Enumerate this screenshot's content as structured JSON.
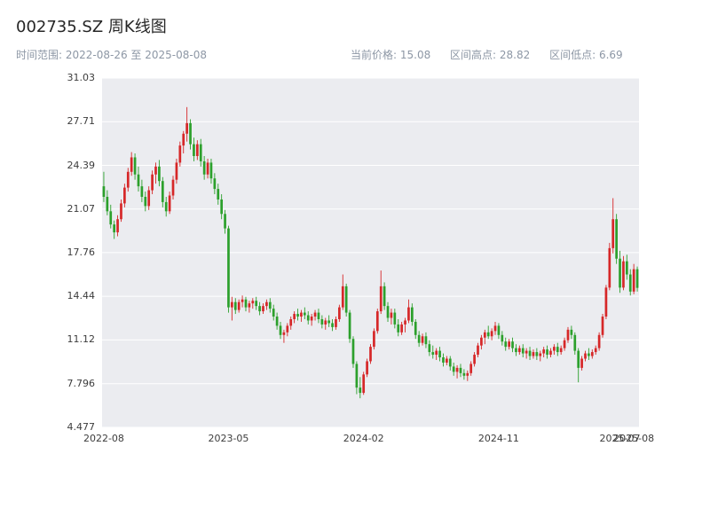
{
  "header": {
    "title": "002735.SZ 周K线图",
    "time_range": "时间范围: 2022-08-26 至 2025-08-08",
    "stats": [
      "当前价格: 15.08",
      "区间高点: 28.82",
      "区间低点: 6.69"
    ]
  },
  "chart_data": {
    "type": "candlestick",
    "symbol": "002735.SZ",
    "interval": "weekly",
    "title": "002735.SZ 周K线图",
    "start_date": "2022-08-26",
    "end_date": "2025-08-08",
    "current_price": 15.08,
    "range_high": 28.82,
    "range_low": 6.69,
    "ylim": [
      4.477,
      31.03
    ],
    "y_ticks": [
      "4.477",
      "7.796",
      "11.12",
      "14.44",
      "17.76",
      "21.07",
      "24.39",
      "27.71",
      "31.03"
    ],
    "x_ticks": [
      {
        "label": "2022-08",
        "index": 0
      },
      {
        "label": "2023-05",
        "index": 36
      },
      {
        "label": "2024-02",
        "index": 75
      },
      {
        "label": "2024-11",
        "index": 114
      },
      {
        "label": "2025-07",
        "index": 149
      },
      {
        "label": "2025-08",
        "index": 153
      }
    ],
    "up_color": "#d62728",
    "down_color": "#2ca02c",
    "plot_bg": "#ebecf0",
    "grid_color": "#ffffff",
    "candles": [
      [
        22.8,
        23.9,
        21.6,
        22.0
      ],
      [
        22.0,
        22.5,
        20.6,
        20.9
      ],
      [
        20.9,
        21.4,
        19.6,
        19.9
      ],
      [
        19.9,
        20.2,
        18.8,
        19.3
      ],
      [
        19.3,
        20.6,
        19.0,
        20.3
      ],
      [
        20.3,
        21.8,
        20.1,
        21.5
      ],
      [
        21.5,
        23.0,
        21.2,
        22.7
      ],
      [
        22.7,
        24.2,
        22.4,
        23.9
      ],
      [
        23.9,
        25.4,
        23.6,
        25.0
      ],
      [
        25.0,
        25.3,
        23.3,
        23.7
      ],
      [
        23.7,
        24.3,
        22.4,
        22.8
      ],
      [
        22.8,
        23.3,
        21.6,
        22.0
      ],
      [
        22.0,
        22.4,
        20.9,
        21.3
      ],
      [
        21.3,
        22.8,
        21.0,
        22.5
      ],
      [
        22.5,
        24.0,
        22.2,
        23.7
      ],
      [
        23.7,
        24.6,
        23.0,
        24.3
      ],
      [
        24.3,
        24.8,
        22.8,
        23.2
      ],
      [
        23.2,
        23.5,
        21.2,
        21.6
      ],
      [
        21.6,
        22.0,
        20.5,
        20.9
      ],
      [
        20.9,
        22.4,
        20.7,
        22.1
      ],
      [
        22.1,
        23.6,
        21.8,
        23.3
      ],
      [
        23.3,
        24.9,
        23.0,
        24.6
      ],
      [
        24.6,
        26.2,
        24.3,
        25.9
      ],
      [
        25.9,
        27.0,
        25.3,
        26.8
      ],
      [
        26.8,
        28.82,
        26.2,
        27.6
      ],
      [
        27.6,
        27.9,
        25.6,
        26.0
      ],
      [
        26.0,
        26.5,
        24.7,
        25.1
      ],
      [
        25.1,
        26.3,
        24.8,
        26.0
      ],
      [
        26.0,
        26.4,
        24.3,
        24.7
      ],
      [
        24.7,
        25.1,
        23.3,
        23.7
      ],
      [
        23.7,
        24.9,
        23.4,
        24.6
      ],
      [
        24.6,
        24.9,
        23.0,
        23.4
      ],
      [
        23.4,
        23.8,
        22.2,
        22.6
      ],
      [
        22.6,
        23.0,
        21.4,
        21.8
      ],
      [
        21.8,
        22.2,
        20.3,
        20.7
      ],
      [
        20.7,
        21.0,
        19.2,
        19.6
      ],
      [
        19.6,
        19.8,
        13.2,
        13.6
      ],
      [
        13.6,
        14.4,
        12.6,
        14.0
      ],
      [
        14.0,
        14.3,
        13.1,
        13.4
      ],
      [
        13.4,
        14.2,
        13.2,
        14.0
      ],
      [
        14.0,
        14.5,
        13.6,
        14.2
      ],
      [
        14.2,
        14.4,
        13.3,
        13.6
      ],
      [
        13.6,
        14.1,
        13.2,
        13.9
      ],
      [
        13.9,
        14.3,
        13.5,
        14.1
      ],
      [
        14.1,
        14.4,
        13.4,
        13.7
      ],
      [
        13.7,
        14.0,
        13.0,
        13.3
      ],
      [
        13.3,
        13.9,
        13.1,
        13.7
      ],
      [
        13.7,
        14.2,
        13.4,
        14.0
      ],
      [
        14.0,
        14.3,
        13.2,
        13.5
      ],
      [
        13.5,
        13.8,
        12.6,
        12.9
      ],
      [
        12.9,
        13.2,
        11.9,
        12.2
      ],
      [
        12.2,
        12.5,
        11.2,
        11.5
      ],
      [
        11.5,
        11.9,
        10.9,
        11.7
      ],
      [
        11.7,
        12.4,
        11.4,
        12.2
      ],
      [
        12.2,
        12.9,
        11.9,
        12.7
      ],
      [
        12.7,
        13.3,
        12.4,
        13.1
      ],
      [
        13.1,
        13.5,
        12.6,
        12.9
      ],
      [
        12.9,
        13.4,
        12.5,
        13.2
      ],
      [
        13.2,
        13.6,
        12.7,
        13.0
      ],
      [
        13.0,
        13.3,
        12.3,
        12.6
      ],
      [
        12.6,
        13.1,
        12.2,
        12.9
      ],
      [
        12.9,
        13.4,
        12.6,
        13.2
      ],
      [
        13.2,
        13.5,
        12.4,
        12.7
      ],
      [
        12.7,
        13.0,
        12.0,
        12.3
      ],
      [
        12.3,
        12.8,
        11.9,
        12.6
      ],
      [
        12.6,
        13.0,
        12.1,
        12.4
      ],
      [
        12.4,
        12.7,
        11.8,
        12.1
      ],
      [
        12.1,
        12.9,
        11.9,
        12.7
      ],
      [
        12.7,
        13.8,
        12.5,
        13.6
      ],
      [
        13.6,
        16.1,
        13.4,
        15.2
      ],
      [
        15.2,
        15.4,
        12.9,
        13.2
      ],
      [
        13.2,
        13.4,
        10.9,
        11.2
      ],
      [
        11.2,
        11.4,
        9.0,
        9.3
      ],
      [
        9.3,
        9.5,
        7.0,
        7.5
      ],
      [
        7.5,
        8.3,
        6.69,
        7.1
      ],
      [
        7.1,
        8.7,
        6.95,
        8.5
      ],
      [
        8.5,
        9.7,
        8.3,
        9.5
      ],
      [
        9.5,
        10.8,
        9.3,
        10.6
      ],
      [
        10.6,
        12.0,
        10.4,
        11.8
      ],
      [
        11.8,
        13.5,
        11.6,
        13.3
      ],
      [
        13.3,
        16.4,
        13.1,
        15.2
      ],
      [
        15.2,
        15.5,
        13.4,
        13.7
      ],
      [
        13.7,
        14.0,
        12.5,
        12.8
      ],
      [
        12.8,
        13.5,
        12.3,
        13.2
      ],
      [
        13.2,
        13.5,
        12.0,
        12.3
      ],
      [
        12.3,
        12.7,
        11.4,
        11.7
      ],
      [
        11.7,
        12.5,
        11.5,
        12.3
      ],
      [
        12.3,
        12.8,
        11.7,
        12.6
      ],
      [
        12.6,
        14.2,
        12.4,
        13.6
      ],
      [
        13.6,
        13.9,
        12.2,
        12.5
      ],
      [
        12.5,
        12.7,
        11.2,
        11.5
      ],
      [
        11.5,
        11.8,
        10.6,
        10.9
      ],
      [
        10.9,
        11.6,
        10.7,
        11.4
      ],
      [
        11.4,
        11.7,
        10.5,
        10.8
      ],
      [
        10.8,
        11.1,
        9.9,
        10.2
      ],
      [
        10.2,
        10.7,
        9.7,
        10.0
      ],
      [
        10.0,
        10.5,
        9.6,
        10.3
      ],
      [
        10.3,
        10.6,
        9.5,
        9.8
      ],
      [
        9.8,
        10.1,
        9.1,
        9.4
      ],
      [
        9.4,
        9.9,
        9.2,
        9.7
      ],
      [
        9.7,
        9.9,
        8.8,
        9.1
      ],
      [
        9.1,
        9.4,
        8.4,
        8.7
      ],
      [
        8.7,
        9.2,
        8.2,
        9.0
      ],
      [
        9.0,
        9.3,
        8.3,
        8.6
      ],
      [
        8.6,
        8.9,
        8.1,
        8.4
      ],
      [
        8.4,
        8.8,
        8.0,
        8.6
      ],
      [
        8.6,
        9.5,
        8.4,
        9.3
      ],
      [
        9.3,
        10.2,
        9.1,
        10.0
      ],
      [
        10.0,
        10.9,
        9.8,
        10.7
      ],
      [
        10.7,
        11.5,
        10.4,
        11.3
      ],
      [
        11.3,
        11.9,
        10.8,
        11.7
      ],
      [
        11.7,
        12.2,
        11.2,
        11.4
      ],
      [
        11.4,
        12.0,
        11.1,
        11.8
      ],
      [
        11.8,
        12.5,
        11.5,
        12.2
      ],
      [
        12.2,
        12.4,
        11.2,
        11.5
      ],
      [
        11.5,
        11.8,
        10.7,
        11.0
      ],
      [
        11.0,
        11.3,
        10.3,
        10.6
      ],
      [
        10.6,
        11.2,
        10.4,
        11.0
      ],
      [
        11.0,
        11.3,
        10.2,
        10.5
      ],
      [
        10.5,
        10.8,
        9.9,
        10.2
      ],
      [
        10.2,
        10.7,
        10.0,
        10.5
      ],
      [
        10.5,
        10.8,
        9.8,
        10.1
      ],
      [
        10.1,
        10.5,
        9.7,
        10.3
      ],
      [
        10.3,
        10.6,
        9.6,
        9.9
      ],
      [
        9.9,
        10.4,
        9.7,
        10.2
      ],
      [
        10.2,
        10.5,
        9.6,
        9.9
      ],
      [
        9.9,
        10.3,
        9.5,
        10.1
      ],
      [
        10.1,
        10.6,
        9.8,
        10.4
      ],
      [
        10.4,
        10.7,
        9.7,
        10.0
      ],
      [
        10.0,
        10.5,
        9.8,
        10.3
      ],
      [
        10.3,
        10.8,
        10.0,
        10.6
      ],
      [
        10.6,
        10.9,
        9.9,
        10.2
      ],
      [
        10.2,
        10.7,
        10.0,
        10.5
      ],
      [
        10.5,
        11.3,
        10.3,
        11.1
      ],
      [
        11.1,
        12.1,
        10.9,
        11.9
      ],
      [
        11.9,
        12.2,
        11.2,
        11.5
      ],
      [
        11.5,
        11.7,
        10.0,
        10.3
      ],
      [
        10.3,
        10.5,
        7.9,
        9.0
      ],
      [
        9.0,
        9.9,
        8.8,
        9.7
      ],
      [
        9.7,
        10.3,
        9.5,
        10.1
      ],
      [
        10.1,
        10.5,
        9.6,
        9.9
      ],
      [
        9.9,
        10.4,
        9.7,
        10.2
      ],
      [
        10.2,
        10.7,
        10.0,
        10.5
      ],
      [
        10.5,
        11.7,
        10.3,
        11.5
      ],
      [
        11.5,
        13.1,
        11.3,
        12.9
      ],
      [
        12.9,
        15.3,
        12.7,
        15.1
      ],
      [
        15.1,
        18.5,
        14.9,
        18.1
      ],
      [
        18.1,
        21.9,
        17.7,
        20.3
      ],
      [
        20.3,
        20.7,
        16.9,
        17.3
      ],
      [
        17.3,
        17.9,
        14.7,
        15.1
      ],
      [
        15.1,
        17.5,
        14.9,
        17.1
      ],
      [
        17.1,
        17.6,
        15.7,
        16.1
      ],
      [
        16.1,
        16.5,
        14.5,
        14.8
      ],
      [
        14.8,
        16.9,
        14.6,
        16.5
      ],
      [
        16.5,
        16.7,
        14.8,
        15.08
      ]
    ]
  }
}
